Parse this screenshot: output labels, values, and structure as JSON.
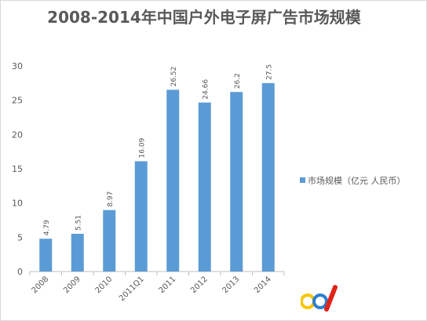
{
  "chart_data": {
    "type": "bar",
    "title": "2008-2014年中国户外电子屏广告市场规模",
    "categories": [
      "2008",
      "2009",
      "2010",
      "2011Q1",
      "2011",
      "2012",
      "2013",
      "2014"
    ],
    "series": [
      {
        "name": "市场规模（亿元 人民币）",
        "values": [
          4.79,
          5.51,
          8.97,
          16.09,
          26.52,
          24.66,
          26.2,
          27.5
        ],
        "labels": [
          "4.79",
          "5.51",
          "8.97",
          "16.09",
          "26.52",
          "24.66",
          "26.2",
          "27.5"
        ],
        "color": "#5b9bd5"
      }
    ],
    "ylim": [
      0,
      30
    ],
    "yticks": [
      "0",
      "5",
      "10",
      "15",
      "20",
      "25",
      "30"
    ],
    "xlabel": "",
    "ylabel": "",
    "grid": false,
    "legend_position": "right"
  },
  "watermark": {
    "text": "cd",
    "icon": "cd-logo-icon",
    "colors": [
      "#f7c600",
      "#2b7fd0",
      "#e2231a"
    ]
  }
}
